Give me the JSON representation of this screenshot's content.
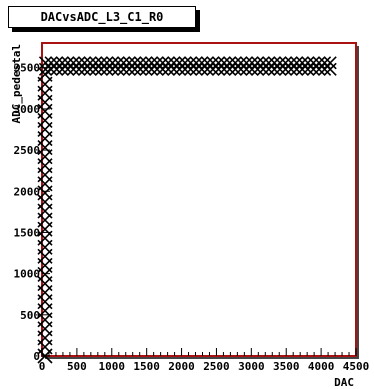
{
  "chart_data": {
    "type": "scatter",
    "title": "DACvsADC_L3_C1_R0",
    "xlabel": "DAC",
    "ylabel": "ADC_pedestal",
    "xlim": [
      0,
      4500
    ],
    "ylim": [
      0,
      3800
    ],
    "x_ticks": [
      "0",
      "500",
      "1000",
      "1500",
      "2000",
      "2500",
      "3000",
      "3500",
      "4000",
      "4500"
    ],
    "y_ticks": [
      "0",
      "500",
      "1000",
      "1500",
      "2000",
      "2500",
      "3000",
      "3500"
    ],
    "grid": false,
    "legend": "none",
    "frame_color": "#aa1111",
    "marker_color": "#000000",
    "marker": "x",
    "series": [
      {
        "points_x_at_zero": [
          0,
          0,
          0,
          0,
          0,
          0,
          0,
          0,
          0,
          0,
          0,
          0,
          0,
          0,
          0,
          0,
          0,
          0,
          0,
          0,
          0,
          0,
          0,
          0,
          0,
          0,
          0,
          0,
          0,
          0,
          0,
          0
        ],
        "points_y_at_zero": [
          0,
          110,
          220,
          330,
          440,
          550,
          660,
          770,
          880,
          990,
          1100,
          1210,
          1320,
          1430,
          1540,
          1650,
          1760,
          1870,
          1980,
          2090,
          2200,
          2310,
          2420,
          2530,
          2640,
          2750,
          2860,
          2970,
          3080,
          3190,
          3300,
          3420
        ],
        "plateau_x_start": 50,
        "plateau_x_end": 4150,
        "plateau_x_step": 80,
        "plateau_y": 3520,
        "plateau_spread": 40
      }
    ]
  }
}
